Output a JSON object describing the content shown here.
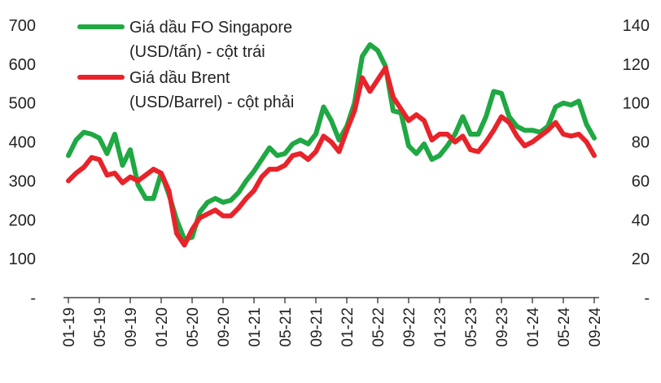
{
  "chart_data": {
    "type": "line",
    "title": "",
    "x": [
      "01-19",
      "02-19",
      "03-19",
      "04-19",
      "05-19",
      "06-19",
      "07-19",
      "08-19",
      "09-19",
      "10-19",
      "11-19",
      "12-19",
      "01-20",
      "02-20",
      "03-20",
      "04-20",
      "05-20",
      "06-20",
      "07-20",
      "08-20",
      "09-20",
      "10-20",
      "11-20",
      "12-20",
      "01-21",
      "02-21",
      "03-21",
      "04-21",
      "05-21",
      "06-21",
      "07-21",
      "08-21",
      "09-21",
      "10-21",
      "11-21",
      "12-21",
      "01-22",
      "02-22",
      "03-22",
      "04-22",
      "05-22",
      "06-22",
      "07-22",
      "08-22",
      "09-22",
      "10-22",
      "11-22",
      "12-22",
      "01-23",
      "02-23",
      "03-23",
      "04-23",
      "05-23",
      "06-23",
      "07-23",
      "08-23",
      "09-23",
      "10-23",
      "11-23",
      "12-23",
      "01-24",
      "02-24",
      "03-24",
      "04-24",
      "05-24",
      "06-24",
      "07-24",
      "08-24",
      "09-24"
    ],
    "x_tick_labels": [
      "01-19",
      "05-19",
      "09-19",
      "01-20",
      "05-20",
      "09-20",
      "01-21",
      "05-21",
      "09-21",
      "01-22",
      "05-22",
      "09-22",
      "01-23",
      "05-23",
      "09-23",
      "01-24",
      "05-24",
      "09-24"
    ],
    "y_left": {
      "ylim": [
        0,
        700
      ],
      "ticks": [
        0,
        100,
        200,
        300,
        400,
        500,
        600,
        700
      ],
      "tick_labels": [
        "-",
        "100",
        "200",
        "300",
        "400",
        "500",
        "600",
        "700"
      ]
    },
    "y_right": {
      "ylim": [
        0,
        140
      ],
      "ticks": [
        0,
        20,
        40,
        60,
        80,
        100,
        120,
        140
      ],
      "tick_labels": [
        "-",
        "20",
        "40",
        "60",
        "80",
        "100",
        "120",
        "140"
      ]
    },
    "series": [
      {
        "name": "Giá dầu FO Singapore",
        "name_line2": "(USD/tấn) - cột trái",
        "axis": "left",
        "color": "#1fa843",
        "values": [
          365,
          405,
          425,
          420,
          410,
          370,
          420,
          340,
          380,
          290,
          255,
          255,
          320,
          265,
          200,
          150,
          155,
          220,
          245,
          255,
          245,
          250,
          270,
          300,
          325,
          355,
          385,
          365,
          370,
          395,
          405,
          395,
          420,
          490,
          455,
          405,
          440,
          500,
          620,
          650,
          635,
          595,
          480,
          475,
          390,
          370,
          395,
          355,
          365,
          390,
          420,
          465,
          420,
          420,
          465,
          530,
          525,
          465,
          440,
          430,
          430,
          425,
          440,
          490,
          500,
          495,
          505,
          445,
          410
        ]
      },
      {
        "name": "Giá dầu Brent",
        "name_line2": "(USD/Barrel) - cột phải",
        "axis": "right",
        "color": "#e8232a",
        "values": [
          60,
          64,
          67,
          72,
          71,
          63,
          64,
          59,
          62,
          60,
          63,
          66,
          64,
          55,
          33,
          27,
          35,
          41,
          43,
          45,
          42,
          42,
          46,
          51,
          55,
          62,
          66,
          66,
          68,
          73,
          74,
          71,
          75,
          83,
          80,
          75,
          86,
          96,
          113,
          106,
          112,
          118,
          103,
          97,
          91,
          94,
          91,
          81,
          84,
          84,
          80,
          83,
          76,
          75,
          80,
          86,
          93,
          90,
          83,
          78,
          80,
          83,
          86,
          90,
          84,
          83,
          84,
          80,
          73
        ]
      }
    ],
    "legend_position": "top-left",
    "grid": false
  }
}
